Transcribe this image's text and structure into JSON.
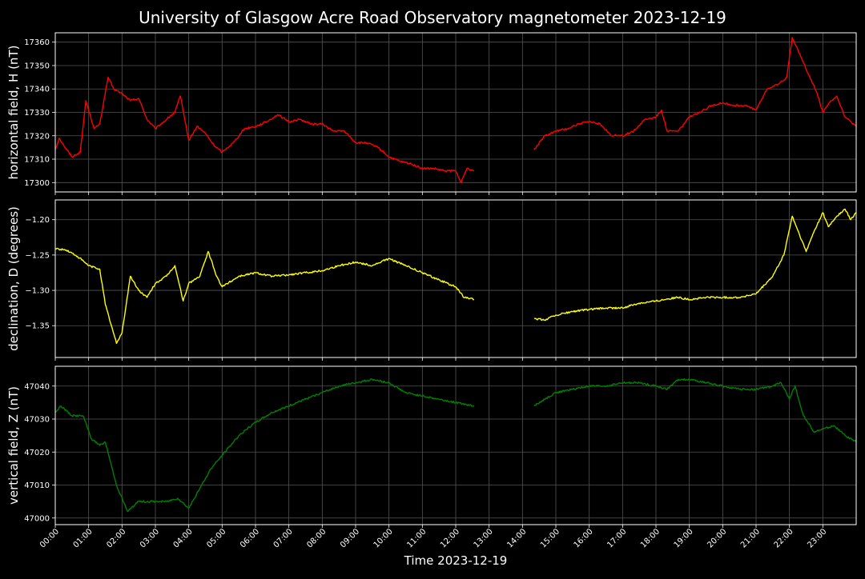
{
  "chart_data": {
    "type": "line",
    "title": "University of Glasgow Acre Road Observatory magnetometer 2023-12-19",
    "xlabel": "Time 2023-12-19",
    "x_ticks": [
      "00:00",
      "01:00",
      "02:00",
      "03:00",
      "04:00",
      "05:00",
      "06:00",
      "07:00",
      "08:00",
      "09:00",
      "10:00",
      "11:00",
      "12:00",
      "13:00",
      "14:00",
      "15:00",
      "16:00",
      "17:00",
      "18:00",
      "19:00",
      "20:00",
      "21:00",
      "22:00",
      "23:00"
    ],
    "xlim": [
      "00:00",
      "24:00"
    ],
    "grid": true,
    "legend": "none",
    "data_gap": [
      "12:33",
      "14:21"
    ],
    "panels": [
      {
        "ylabel": "horizontal field, H (nT)",
        "color": "#ff0000",
        "ylim": [
          17296,
          17364
        ],
        "y_ticks": [
          "17300",
          "17310",
          "17320",
          "17330",
          "17340",
          "17350",
          "17360"
        ],
        "y_tick_values": [
          17300,
          17310,
          17320,
          17330,
          17340,
          17350,
          17360
        ],
        "series": [
          {
            "segment": [
              [
                "00:00",
                17314
              ],
              [
                "00:07",
                17319
              ],
              [
                "00:15",
                17316
              ],
              [
                "00:30",
                17311
              ],
              [
                "00:45",
                17313
              ],
              [
                "00:55",
                17335
              ],
              [
                "01:10",
                17323
              ],
              [
                "01:20",
                17325
              ],
              [
                "01:35",
                17345
              ],
              [
                "01:45",
                17340
              ],
              [
                "02:00",
                17338
              ],
              [
                "02:15",
                17335
              ],
              [
                "02:30",
                17336
              ],
              [
                "02:45",
                17327
              ],
              [
                "03:00",
                17323
              ],
              [
                "03:20",
                17327
              ],
              [
                "03:35",
                17330
              ],
              [
                "03:45",
                17337
              ],
              [
                "04:00",
                17318
              ],
              [
                "04:15",
                17324
              ],
              [
                "04:30",
                17321
              ],
              [
                "04:45",
                17316
              ],
              [
                "05:00",
                17313
              ],
              [
                "05:20",
                17317
              ],
              [
                "05:40",
                17323
              ],
              [
                "06:00",
                17324
              ],
              [
                "06:20",
                17326
              ],
              [
                "06:40",
                17329
              ],
              [
                "07:00",
                17326
              ],
              [
                "07:20",
                17327
              ],
              [
                "07:40",
                17325
              ],
              [
                "08:00",
                17325
              ],
              [
                "08:20",
                17322
              ],
              [
                "08:40",
                17322
              ],
              [
                "09:00",
                17317
              ],
              [
                "09:20",
                17317
              ],
              [
                "09:40",
                17315
              ],
              [
                "10:00",
                17311
              ],
              [
                "10:20",
                17309
              ],
              [
                "10:40",
                17308
              ],
              [
                "11:00",
                17306
              ],
              [
                "11:20",
                17306
              ],
              [
                "11:40",
                17305
              ],
              [
                "12:00",
                17305
              ],
              [
                "12:10",
                17300
              ],
              [
                "12:20",
                17306
              ],
              [
                "12:33",
                17305
              ]
            ]
          },
          {
            "segment": [
              [
                "14:21",
                17314
              ],
              [
                "14:40",
                17320
              ],
              [
                "15:00",
                17322
              ],
              [
                "15:20",
                17323
              ],
              [
                "15:40",
                17325
              ],
              [
                "16:00",
                17326
              ],
              [
                "16:20",
                17325
              ],
              [
                "16:40",
                17320
              ],
              [
                "17:00",
                17320
              ],
              [
                "17:20",
                17322
              ],
              [
                "17:40",
                17327
              ],
              [
                "18:00",
                17328
              ],
              [
                "18:10",
                17331
              ],
              [
                "18:20",
                17322
              ],
              [
                "18:40",
                17322
              ],
              [
                "19:00",
                17328
              ],
              [
                "19:20",
                17330
              ],
              [
                "19:40",
                17333
              ],
              [
                "20:00",
                17334
              ],
              [
                "20:20",
                17333
              ],
              [
                "20:40",
                17333
              ],
              [
                "21:00",
                17331
              ],
              [
                "21:20",
                17340
              ],
              [
                "21:40",
                17342
              ],
              [
                "21:55",
                17345
              ],
              [
                "22:05",
                17362
              ],
              [
                "22:20",
                17354
              ],
              [
                "22:35",
                17346
              ],
              [
                "22:50",
                17338
              ],
              [
                "23:00",
                17330
              ],
              [
                "23:15",
                17335
              ],
              [
                "23:25",
                17337
              ],
              [
                "23:40",
                17328
              ],
              [
                "24:00",
                17324
              ]
            ]
          }
        ]
      },
      {
        "ylabel": "declination, D (degrees)",
        "color": "#ffff00",
        "ylim": [
          -1.395,
          -1.172
        ],
        "y_ticks": [
          "−1.35",
          "−1.30",
          "−1.25",
          "−1.20"
        ],
        "y_tick_values": [
          -1.35,
          -1.3,
          -1.25,
          -1.2
        ],
        "series": [
          {
            "segment": [
              [
                "00:00",
                -1.241
              ],
              [
                "00:20",
                -1.243
              ],
              [
                "00:40",
                -1.252
              ],
              [
                "01:00",
                -1.265
              ],
              [
                "01:20",
                -1.27
              ],
              [
                "01:30",
                -1.32
              ],
              [
                "01:50",
                -1.375
              ],
              [
                "02:00",
                -1.36
              ],
              [
                "02:15",
                -1.28
              ],
              [
                "02:30",
                -1.3
              ],
              [
                "02:45",
                -1.31
              ],
              [
                "03:00",
                -1.29
              ],
              [
                "03:20",
                -1.28
              ],
              [
                "03:35",
                -1.265
              ],
              [
                "03:50",
                -1.315
              ],
              [
                "04:00",
                -1.29
              ],
              [
                "04:20",
                -1.28
              ],
              [
                "04:35",
                -1.245
              ],
              [
                "04:50",
                -1.28
              ],
              [
                "05:00",
                -1.295
              ],
              [
                "05:30",
                -1.28
              ],
              [
                "06:00",
                -1.275
              ],
              [
                "06:30",
                -1.28
              ],
              [
                "07:00",
                -1.278
              ],
              [
                "07:30",
                -1.275
              ],
              [
                "08:00",
                -1.272
              ],
              [
                "08:30",
                -1.265
              ],
              [
                "09:00",
                -1.26
              ],
              [
                "09:30",
                -1.265
              ],
              [
                "10:00",
                -1.255
              ],
              [
                "10:30",
                -1.265
              ],
              [
                "11:00",
                -1.275
              ],
              [
                "11:30",
                -1.285
              ],
              [
                "12:00",
                -1.295
              ],
              [
                "12:15",
                -1.31
              ],
              [
                "12:33",
                -1.313
              ]
            ]
          },
          {
            "segment": [
              [
                "14:21",
                -1.34
              ],
              [
                "14:40",
                -1.342
              ],
              [
                "15:00",
                -1.335
              ],
              [
                "15:30",
                -1.33
              ],
              [
                "16:00",
                -1.327
              ],
              [
                "16:30",
                -1.325
              ],
              [
                "17:00",
                -1.325
              ],
              [
                "17:30",
                -1.318
              ],
              [
                "18:00",
                -1.315
              ],
              [
                "18:20",
                -1.312
              ],
              [
                "18:40",
                -1.31
              ],
              [
                "19:00",
                -1.313
              ],
              [
                "19:30",
                -1.31
              ],
              [
                "20:00",
                -1.31
              ],
              [
                "20:30",
                -1.31
              ],
              [
                "21:00",
                -1.305
              ],
              [
                "21:30",
                -1.28
              ],
              [
                "21:50",
                -1.25
              ],
              [
                "22:05",
                -1.195
              ],
              [
                "22:15",
                -1.215
              ],
              [
                "22:30",
                -1.245
              ],
              [
                "22:45",
                -1.215
              ],
              [
                "23:00",
                -1.19
              ],
              [
                "23:10",
                -1.21
              ],
              [
                "23:25",
                -1.195
              ],
              [
                "23:40",
                -1.185
              ],
              [
                "23:50",
                -1.2
              ],
              [
                "24:00",
                -1.19
              ]
            ]
          }
        ]
      },
      {
        "ylabel": "vertical field, Z (nT)",
        "color": "#008000",
        "ylim": [
          46998,
          47046
        ],
        "y_ticks": [
          "47000",
          "47010",
          "47020",
          "47030",
          "47040"
        ],
        "y_tick_values": [
          47000,
          47010,
          47020,
          47030,
          47040
        ],
        "series": [
          {
            "segment": [
              [
                "00:00",
                47032
              ],
              [
                "00:10",
                47034
              ],
              [
                "00:30",
                47031
              ],
              [
                "00:50",
                47031
              ],
              [
                "01:05",
                47024
              ],
              [
                "01:20",
                47022
              ],
              [
                "01:30",
                47023
              ],
              [
                "01:50",
                47010
              ],
              [
                "02:10",
                47002
              ],
              [
                "02:30",
                47005
              ],
              [
                "03:00",
                47005
              ],
              [
                "03:20",
                47005
              ],
              [
                "03:40",
                47006
              ],
              [
                "04:00",
                47003
              ],
              [
                "04:20",
                47009
              ],
              [
                "04:40",
                47015
              ],
              [
                "05:00",
                47019
              ],
              [
                "05:30",
                47025
              ],
              [
                "06:00",
                47029
              ],
              [
                "06:30",
                47032
              ],
              [
                "07:00",
                47034
              ],
              [
                "07:30",
                47036
              ],
              [
                "08:00",
                47038
              ],
              [
                "08:30",
                47040
              ],
              [
                "09:00",
                47041
              ],
              [
                "09:30",
                47042
              ],
              [
                "10:00",
                47041
              ],
              [
                "10:30",
                47038
              ],
              [
                "11:00",
                47037
              ],
              [
                "11:30",
                47036
              ],
              [
                "12:00",
                47035
              ],
              [
                "12:33",
                47034
              ]
            ]
          },
          {
            "segment": [
              [
                "14:21",
                47034
              ],
              [
                "14:40",
                47036
              ],
              [
                "15:00",
                47038
              ],
              [
                "15:30",
                47039
              ],
              [
                "16:00",
                47040
              ],
              [
                "16:30",
                47040
              ],
              [
                "17:00",
                47041
              ],
              [
                "17:30",
                47041
              ],
              [
                "18:00",
                47040
              ],
              [
                "18:20",
                47039
              ],
              [
                "18:40",
                47042
              ],
              [
                "19:00",
                47042
              ],
              [
                "19:30",
                47041
              ],
              [
                "20:00",
                47040
              ],
              [
                "20:30",
                47039
              ],
              [
                "21:00",
                47039
              ],
              [
                "21:30",
                47040
              ],
              [
                "21:45",
                47041
              ],
              [
                "22:00",
                47036
              ],
              [
                "22:10",
                47040
              ],
              [
                "22:25",
                47031
              ],
              [
                "22:45",
                47026
              ],
              [
                "23:00",
                47027
              ],
              [
                "23:20",
                47028
              ],
              [
                "23:40",
                47025
              ],
              [
                "24:00",
                47023
              ]
            ]
          }
        ]
      }
    ]
  }
}
